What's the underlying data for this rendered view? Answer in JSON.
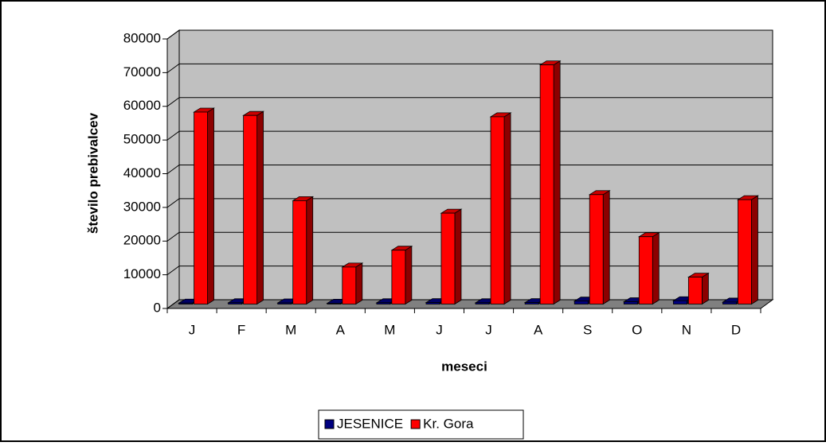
{
  "chart_data": {
    "type": "bar3d",
    "y_label": "število prebivalcev",
    "x_label": "meseci",
    "categories": [
      "J",
      "F",
      "M",
      "A",
      "M",
      "J",
      "J",
      "A",
      "S",
      "O",
      "N",
      "D"
    ],
    "series": [
      {
        "name": "JESENICE",
        "color": "#000080",
        "values": [
          300,
          400,
          350,
          250,
          400,
          450,
          400,
          450,
          900,
          700,
          1000,
          600
        ]
      },
      {
        "name": "Kr. Gora",
        "color": "#ff0000",
        "values": [
          57000,
          56000,
          30700,
          11000,
          16000,
          27000,
          55600,
          71000,
          32500,
          20000,
          8000,
          31000
        ]
      }
    ],
    "ylim": [
      0,
      80000
    ],
    "yticks": [
      0,
      10000,
      20000,
      30000,
      40000,
      50000,
      60000,
      70000,
      80000
    ],
    "grid": true
  }
}
